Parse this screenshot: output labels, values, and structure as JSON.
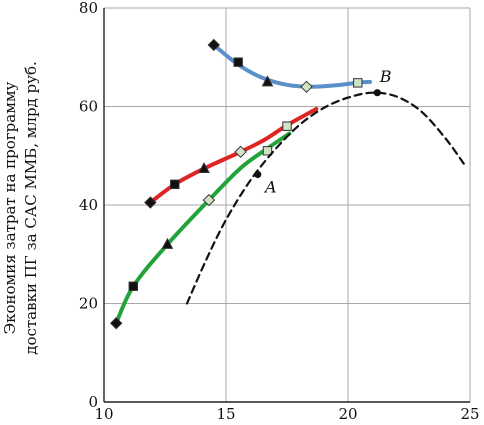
{
  "chart_data": {
    "type": "line",
    "xlim": [
      10,
      25
    ],
    "ylim": [
      0,
      80
    ],
    "x_ticks": [
      "10",
      "15",
      "20",
      "25"
    ],
    "y_ticks": [
      "0",
      "20",
      "40",
      "60",
      "80"
    ],
    "xlabel": "",
    "ylabel_line1": "Экономия затрат на программу",
    "ylabel_line2": "доставки ПГ за САС ММБ, млрд руб.",
    "grid": true,
    "series": [
      {
        "color": "#5b8fc9",
        "curve": [
          [
            14.5,
            72.5
          ],
          [
            15.5,
            68.5
          ],
          [
            16.5,
            65.8
          ],
          [
            17.5,
            64.4
          ],
          [
            18.5,
            64.0
          ],
          [
            19.5,
            64.3
          ],
          [
            20.5,
            64.9
          ],
          [
            20.9,
            65.0
          ]
        ],
        "markers": [
          {
            "x": 14.5,
            "y": 72.5,
            "shape": "diamond",
            "fill": "#111"
          },
          {
            "x": 15.5,
            "y": 69.0,
            "shape": "square",
            "fill": "#111"
          },
          {
            "x": 16.7,
            "y": 65.0,
            "shape": "triangle",
            "fill": "#111"
          },
          {
            "x": 18.3,
            "y": 64.0,
            "shape": "diamond",
            "fill": "#cfe3c2"
          },
          {
            "x": 20.4,
            "y": 64.8,
            "shape": "square",
            "fill": "#cfe3c2"
          }
        ]
      },
      {
        "color": "#e02424",
        "curve": [
          [
            11.9,
            40.5
          ],
          [
            12.9,
            44.2
          ],
          [
            14.1,
            47.4
          ],
          [
            15.6,
            50.8
          ],
          [
            16.6,
            53.3
          ],
          [
            17.5,
            56.2
          ],
          [
            18.7,
            59.5
          ]
        ],
        "markers": [
          {
            "x": 11.9,
            "y": 40.5,
            "shape": "diamond",
            "fill": "#111"
          },
          {
            "x": 12.9,
            "y": 44.2,
            "shape": "square",
            "fill": "#111"
          },
          {
            "x": 14.1,
            "y": 47.4,
            "shape": "triangle",
            "fill": "#111"
          },
          {
            "x": 15.6,
            "y": 50.8,
            "shape": "diamond",
            "fill": "#cfe3c2"
          },
          {
            "x": 17.5,
            "y": 56.0,
            "shape": "square",
            "fill": "#cfe3c2"
          }
        ]
      },
      {
        "color": "#22a33a",
        "curve": [
          [
            10.5,
            16.0
          ],
          [
            11.2,
            23.5
          ],
          [
            12.6,
            32.0
          ],
          [
            14.3,
            41.0
          ],
          [
            15.6,
            47.5
          ],
          [
            16.7,
            51.5
          ],
          [
            17.6,
            54.5
          ]
        ],
        "markers": [
          {
            "x": 10.5,
            "y": 16.0,
            "shape": "diamond",
            "fill": "#111"
          },
          {
            "x": 11.2,
            "y": 23.5,
            "shape": "square",
            "fill": "#111"
          },
          {
            "x": 12.6,
            "y": 32.0,
            "shape": "triangle",
            "fill": "#111"
          },
          {
            "x": 14.3,
            "y": 41.0,
            "shape": "diamond",
            "fill": "#cfe3c2"
          },
          {
            "x": 16.7,
            "y": 51.0,
            "shape": "square",
            "fill": "#cfe3c2"
          }
        ]
      },
      {
        "color": "#111111",
        "dashed": true,
        "curve": [
          [
            13.4,
            20.0
          ],
          [
            14.2,
            29.0
          ],
          [
            15.0,
            37.0
          ],
          [
            16.0,
            45.0
          ],
          [
            17.0,
            51.2
          ],
          [
            18.0,
            56.2
          ],
          [
            19.0,
            59.7
          ],
          [
            20.0,
            61.8
          ],
          [
            21.0,
            62.8
          ],
          [
            22.0,
            62.0
          ],
          [
            23.0,
            59.0
          ],
          [
            24.0,
            53.5
          ],
          [
            24.8,
            48.0
          ]
        ],
        "markers": [
          {
            "x": 16.3,
            "y": 46.2,
            "shape": "circle",
            "fill": "#111"
          },
          {
            "x": 21.2,
            "y": 62.8,
            "shape": "circle",
            "fill": "#111"
          }
        ]
      }
    ],
    "annotations": [
      {
        "text": "A",
        "x": 16.6,
        "y": 42.5
      },
      {
        "text": "B",
        "x": 21.3,
        "y": 65.0
      }
    ]
  }
}
